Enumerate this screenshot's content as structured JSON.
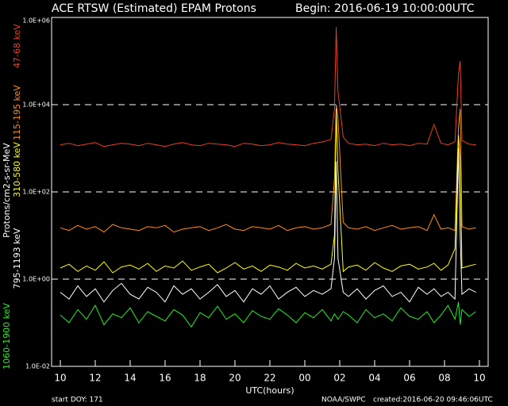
{
  "chart_data": {
    "type": "line",
    "title": "ACE RTSW (Estimated) EPAM Protons",
    "subtitle": "Begin: 2016-06-19 10:00:00UTC",
    "y_label": "Protons/cm2-s-sr-MeV",
    "x_label": "UTC(hours)",
    "footer_left": "start DOY:  171",
    "footer_center": "NOAA/SWPC",
    "footer_right": "created:2016-06-20 09:46:06UTC",
    "log_y": true,
    "grid": true,
    "xlim": [
      9.5,
      34.5
    ],
    "ylim": [
      0.01,
      1000000
    ],
    "xticks": [
      10,
      12,
      14,
      16,
      18,
      20,
      22,
      {
        "value": 24,
        "label": "00"
      },
      {
        "value": 26,
        "label": "02"
      },
      {
        "value": 28,
        "label": "04"
      },
      {
        "value": 30,
        "label": "06"
      },
      {
        "value": 32,
        "label": "08"
      },
      {
        "value": 34,
        "label": "10"
      }
    ],
    "yticks": [
      {
        "value": 0.01,
        "label": "1.0E-02"
      },
      {
        "value": 1,
        "label": "1.0E+00"
      },
      {
        "value": 100,
        "label": "1.0E+02"
      },
      {
        "value": 10000,
        "label": "1.0E+04"
      },
      {
        "value": 1000000,
        "label": "1.0E+06"
      }
    ],
    "x": [
      10,
      10.5,
      11,
      11.5,
      12,
      12.5,
      13,
      13.5,
      14,
      14.5,
      15,
      15.5,
      16,
      16.5,
      17,
      17.5,
      18,
      18.5,
      19,
      19.5,
      20,
      20.5,
      21,
      21.5,
      22,
      22.5,
      23,
      23.5,
      24,
      24.5,
      25,
      25.5,
      25.7,
      25.8,
      25.9,
      26.2,
      26.5,
      27,
      27.5,
      28,
      28.5,
      29,
      29.5,
      30,
      30.5,
      31,
      31.4,
      31.8,
      32.2,
      32.6,
      32.8,
      32.9,
      33,
      33.4,
      33.8
    ],
    "series": [
      {
        "name": "47-68 keV",
        "color": "#e8401e",
        "values": [
          1200,
          1300,
          1150,
          1250,
          1350,
          1100,
          1200,
          1300,
          1250,
          1150,
          1300,
          1200,
          1100,
          1250,
          1350,
          1200,
          1150,
          1300,
          1250,
          1200,
          1100,
          1300,
          1250,
          1150,
          1200,
          1350,
          1250,
          1200,
          1150,
          1300,
          1400,
          1600,
          8000,
          600000,
          20000,
          1800,
          1300,
          1200,
          1250,
          1150,
          1300,
          1200,
          1250,
          1150,
          1300,
          1250,
          3500,
          1300,
          1200,
          1400,
          50000,
          100000,
          1500,
          1250,
          1200
        ]
      },
      {
        "name": "115-195 keV",
        "color": "#ff8c1a",
        "values": [
          15,
          13,
          17,
          14,
          16,
          12,
          18,
          15,
          14,
          13,
          16,
          15,
          17,
          12,
          14,
          15,
          16,
          13,
          15,
          18,
          14,
          13,
          16,
          15,
          14,
          17,
          13,
          15,
          16,
          14,
          15,
          18,
          200,
          10000,
          5000,
          20,
          15,
          14,
          16,
          13,
          15,
          17,
          14,
          15,
          16,
          13,
          30,
          14,
          15,
          13,
          3000,
          8000,
          16,
          14,
          15
        ]
      },
      {
        "name": "310-580 keV",
        "color": "#ffff00",
        "values": [
          1.8,
          2.2,
          1.5,
          2,
          1.6,
          2.5,
          1.4,
          1.9,
          2.1,
          1.7,
          2.3,
          1.5,
          2,
          1.8,
          2.6,
          1.6,
          1.9,
          2.2,
          1.4,
          1.8,
          2.4,
          1.7,
          2,
          1.5,
          2.1,
          1.9,
          1.6,
          2.3,
          1.8,
          2,
          1.7,
          2.2,
          10,
          8000,
          300,
          1.5,
          1.9,
          2.1,
          1.6,
          2.4,
          1.8,
          1.5,
          2,
          2.2,
          1.7,
          1.9,
          2.3,
          1.6,
          2.1,
          5,
          2000,
          500,
          1.8,
          2,
          2.2
        ]
      },
      {
        "name": "795-1193 keV",
        "color": "#ffffff",
        "values": [
          0.5,
          0.35,
          0.7,
          0.4,
          0.6,
          0.3,
          0.55,
          0.8,
          0.45,
          0.35,
          0.65,
          0.5,
          0.3,
          0.7,
          0.45,
          0.6,
          0.35,
          0.5,
          0.75,
          0.4,
          0.55,
          0.3,
          0.6,
          0.45,
          0.7,
          0.35,
          0.5,
          0.65,
          0.4,
          0.55,
          0.45,
          0.6,
          3,
          500,
          3,
          0.5,
          0.4,
          0.6,
          0.35,
          0.55,
          0.7,
          0.4,
          0.5,
          0.3,
          0.65,
          0.45,
          0.6,
          0.4,
          0.5,
          0.35,
          1000,
          10,
          0.45,
          0.6,
          0.5
        ]
      },
      {
        "name": "1060-1900 keV",
        "color": "#22ee22",
        "values": [
          0.15,
          0.1,
          0.2,
          0.12,
          0.25,
          0.09,
          0.16,
          0.13,
          0.22,
          0.1,
          0.18,
          0.14,
          0.11,
          0.2,
          0.15,
          0.08,
          0.17,
          0.13,
          0.24,
          0.12,
          0.16,
          0.1,
          0.19,
          0.14,
          0.12,
          0.21,
          0.15,
          0.1,
          0.17,
          0.13,
          0.2,
          0.11,
          0.16,
          0.14,
          0.12,
          0.18,
          0.15,
          0.1,
          0.2,
          0.13,
          0.16,
          0.11,
          0.22,
          0.14,
          0.12,
          0.18,
          0.1,
          0.15,
          0.25,
          0.12,
          0.3,
          0.09,
          0.2,
          0.14,
          0.18
        ]
      }
    ]
  }
}
